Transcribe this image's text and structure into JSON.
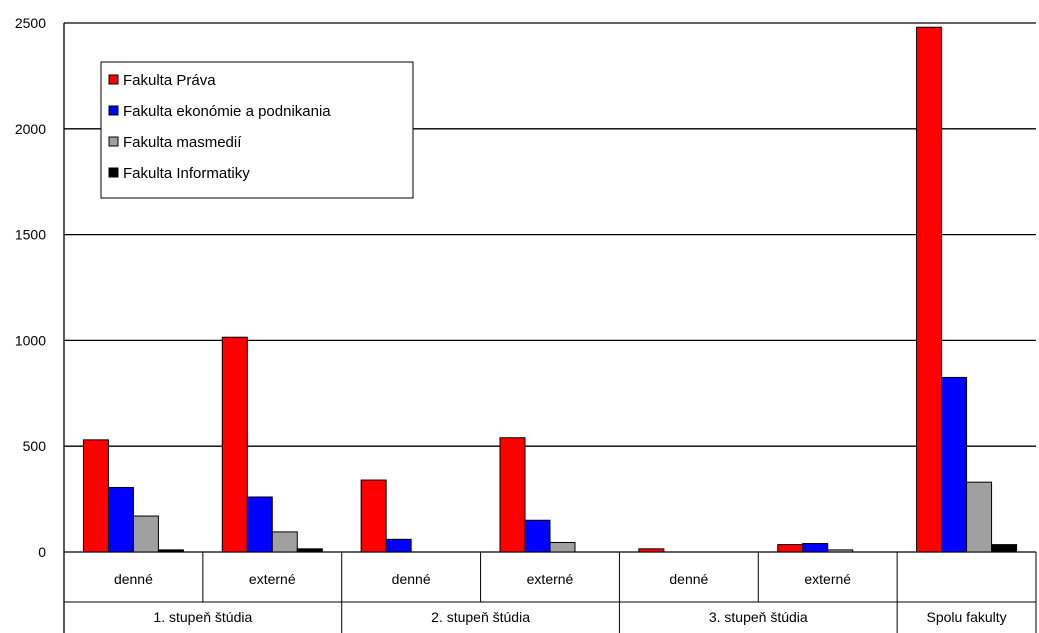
{
  "chart_data": {
    "type": "bar",
    "title": "",
    "xlabel": "",
    "ylabel": "",
    "ylim": [
      0,
      2500
    ],
    "yticks": [
      0,
      500,
      1000,
      1500,
      2000,
      2500
    ],
    "grid": true,
    "legend_position": "top-left",
    "groups": [
      {
        "label": "1. stupeň štúdia",
        "categories": [
          "denné",
          "externé"
        ]
      },
      {
        "label": "2. stupeň štúdia",
        "categories": [
          "denné",
          "externé"
        ]
      },
      {
        "label": "3. stupeň štúdia",
        "categories": [
          "denné",
          "externé"
        ]
      },
      {
        "label": "Spolu fakulty",
        "categories": [
          ""
        ]
      }
    ],
    "series": [
      {
        "name": "Fakulta Práva",
        "color": "#ff0000",
        "values": [
          530,
          1015,
          340,
          540,
          15,
          35,
          2480
        ]
      },
      {
        "name": "Fakulta ekonómie a podnikania",
        "color": "#0000ff",
        "values": [
          305,
          260,
          60,
          150,
          0,
          40,
          825
        ]
      },
      {
        "name": "Fakulta masmedií",
        "color": "#a0a0a0",
        "values": [
          170,
          95,
          0,
          45,
          0,
          10,
          330
        ]
      },
      {
        "name": "Fakulta Informatiky",
        "color": "#000000",
        "values": [
          10,
          15,
          0,
          0,
          0,
          0,
          35
        ]
      }
    ]
  }
}
